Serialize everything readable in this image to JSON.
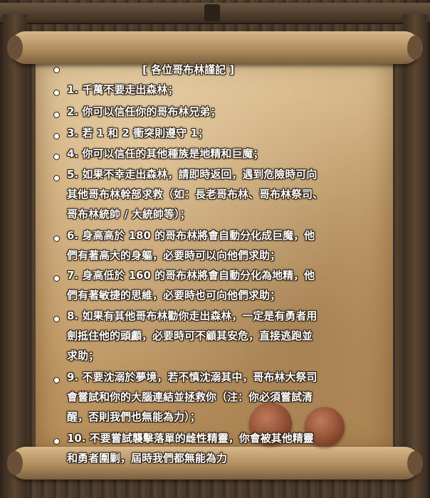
{
  "title": "[ 各位哥布林謹記 ]",
  "rules": [
    {
      "lines": [
        "1. 千萬不要走出森林；"
      ]
    },
    {
      "lines": [
        "2. 你可以信任你的哥布林兄弟；"
      ]
    },
    {
      "lines": [
        "3. 若 1 和 2 衝突則遵守 1；"
      ]
    },
    {
      "lines": [
        "4. 你可以信任的其他種族是地精和巨魔；"
      ]
    },
    {
      "lines": [
        "5. 如果不幸走出森林，請即時返回，遇到危險時可向",
        "其他哥布林幹部求救（如：長老哥布林、哥布林祭司、",
        "哥布林統帥 / 大統帥等）；"
      ]
    },
    {
      "lines": [
        "6. 身高高於 180 的哥布林將會自動分化成巨魔，他",
        "們有著高大的身軀，必要時可以向他們求助；"
      ]
    },
    {
      "lines": [
        "7. 身高低於 160 的哥布林將會自動分化為地精，他",
        "們有著敏捷的思維，必要時也可向他們求助；"
      ]
    },
    {
      "lines": [
        "8. 如果有其他哥布林勸你走出森林，一定是有勇者用",
        "劍抵住他的頭顱，必要時可不顧其安危，直接逃跑並",
        "求助；"
      ]
    },
    {
      "lines": [
        "9. 不要沈溺於夢境，若不慎沈溺其中，哥布林大祭司",
        "會嘗試和你的大腦連結並拯救你（注：你必須嘗試清",
        "醒，否則我們也無能為力）；"
      ]
    },
    {
      "lines": [
        "10. 不要嘗試襲擊落單的雌性精靈，你會被其他精靈",
        "和勇者圍剿，屆時我們都無能為力"
      ]
    }
  ]
}
